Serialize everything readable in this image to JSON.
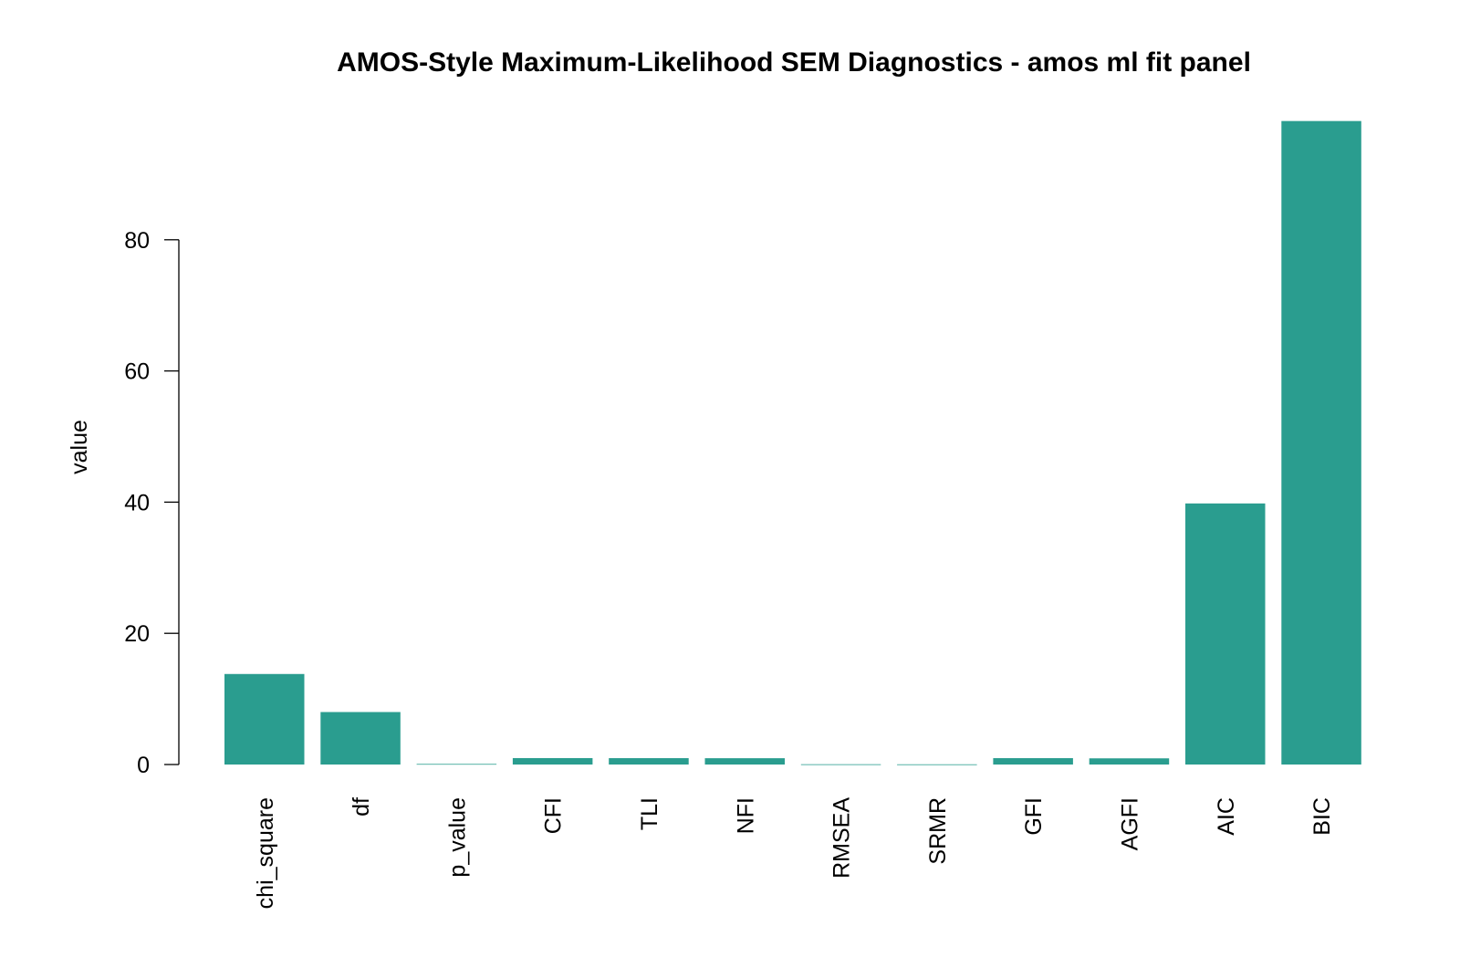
{
  "chart_data": {
    "type": "bar",
    "title": "AMOS-Style Maximum-Likelihood SEM Diagnostics - amos ml fit panel",
    "xlabel": "",
    "ylabel": "value",
    "categories": [
      "chi_square",
      "df",
      "p_value",
      "CFI",
      "TLI",
      "NFI",
      "RMSEA",
      "SRMR",
      "GFI",
      "AGFI",
      "AIC",
      "BIC"
    ],
    "values": [
      13.8,
      8,
      0.09,
      0.98,
      0.97,
      0.96,
      0.04,
      0.03,
      0.97,
      0.94,
      39.8,
      98.1
    ],
    "yticks": [
      0,
      20,
      40,
      60,
      80
    ],
    "ylim": [
      0,
      100
    ],
    "grid": false,
    "bar_color": "#2a9d8f"
  }
}
